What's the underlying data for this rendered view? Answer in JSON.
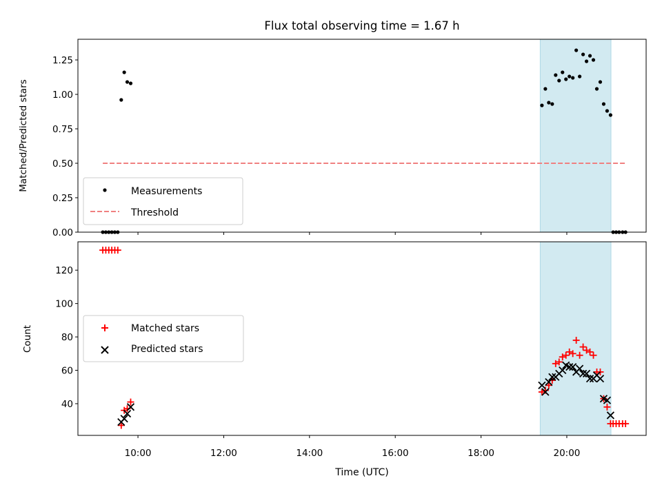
{
  "figure": {
    "title": "Flux total observing time = 1.67 h"
  },
  "chart_data": [
    {
      "type": "scatter",
      "panel": "top",
      "ylabel": "Matched/Predicted stars",
      "xlabel": "",
      "xlim": [
        8.6,
        21.85
      ],
      "ylim": [
        0,
        1.4
      ],
      "yticks": [
        0.0,
        0.25,
        0.5,
        0.75,
        1.0,
        1.25
      ],
      "ytick_labels": [
        "0.00",
        "0.25",
        "0.50",
        "0.75",
        "1.00",
        "1.25"
      ],
      "shaded_region": {
        "x": [
          19.38,
          21.03
        ],
        "color": "#add8e6"
      },
      "legend_location": "lower-left",
      "series": [
        {
          "name": "Measurements",
          "marker": "dot",
          "color": "#000000",
          "x": [
            9.18,
            9.25,
            9.32,
            9.39,
            9.46,
            9.53,
            9.61,
            9.68,
            9.75,
            9.83,
            19.42,
            19.5,
            19.58,
            19.66,
            19.74,
            19.82,
            19.9,
            19.98,
            20.06,
            20.14,
            20.22,
            20.3,
            20.38,
            20.46,
            20.54,
            20.62,
            20.7,
            20.78,
            20.86,
            20.94,
            21.02,
            21.08,
            21.15,
            21.22,
            21.3,
            21.37
          ],
          "y": [
            0,
            0,
            0,
            0,
            0,
            0,
            0.96,
            1.16,
            1.09,
            1.08,
            0.92,
            1.04,
            0.94,
            0.93,
            1.14,
            1.1,
            1.16,
            1.11,
            1.13,
            1.12,
            1.32,
            1.13,
            1.29,
            1.24,
            1.28,
            1.25,
            1.04,
            1.09,
            0.93,
            0.88,
            0.85,
            0,
            0,
            0,
            0,
            0
          ]
        },
        {
          "name": "Threshold",
          "style": "dashed",
          "color": "#f08080",
          "x": [
            9.18,
            21.37
          ],
          "y": [
            0.5,
            0.5
          ]
        }
      ]
    },
    {
      "type": "scatter",
      "panel": "bottom",
      "xlabel": "Time (UTC)",
      "ylabel": "Count",
      "xlim": [
        8.6,
        21.85
      ],
      "ylim": [
        21,
        137
      ],
      "xticks": [
        10,
        12,
        14,
        16,
        18,
        20
      ],
      "xtick_labels": [
        "10:00",
        "12:00",
        "14:00",
        "16:00",
        "18:00",
        "20:00"
      ],
      "yticks": [
        40,
        60,
        80,
        100,
        120
      ],
      "ytick_labels": [
        "40",
        "60",
        "80",
        "100",
        "120"
      ],
      "shaded_region": {
        "x": [
          19.38,
          21.03
        ],
        "color": "#add8e6"
      },
      "legend_location": "center-left",
      "series": [
        {
          "name": "Matched stars",
          "marker": "plus",
          "color": "#ff0000",
          "x": [
            9.18,
            9.25,
            9.32,
            9.39,
            9.46,
            9.53,
            9.61,
            9.68,
            9.75,
            9.83,
            19.42,
            19.5,
            19.58,
            19.66,
            19.74,
            19.82,
            19.9,
            19.98,
            20.06,
            20.14,
            20.22,
            20.3,
            20.38,
            20.46,
            20.54,
            20.62,
            20.7,
            20.78,
            20.86,
            20.94,
            21.02,
            21.08,
            21.15,
            21.22,
            21.3,
            21.37
          ],
          "y": [
            132,
            132,
            132,
            132,
            132,
            132,
            27,
            36,
            37,
            41,
            47,
            48,
            51,
            54,
            64,
            65,
            68,
            69,
            71,
            70,
            78,
            69,
            74,
            72,
            71,
            69,
            59,
            59,
            43,
            38,
            28,
            28,
            28,
            28,
            28,
            28
          ]
        },
        {
          "name": "Predicted stars",
          "marker": "x",
          "color": "#000000",
          "x": [
            9.61,
            9.68,
            9.75,
            9.83,
            19.42,
            19.5,
            19.58,
            19.66,
            19.74,
            19.82,
            19.9,
            19.98,
            20.06,
            20.14,
            20.22,
            20.3,
            20.38,
            20.46,
            20.54,
            20.62,
            20.7,
            20.78,
            20.86,
            20.94,
            21.02
          ],
          "y": [
            29,
            31,
            34,
            38,
            51,
            47,
            53,
            56,
            56,
            58,
            60,
            63,
            62,
            62,
            59,
            61,
            58,
            58,
            55,
            55,
            57,
            55,
            43,
            42,
            33
          ]
        }
      ]
    }
  ]
}
